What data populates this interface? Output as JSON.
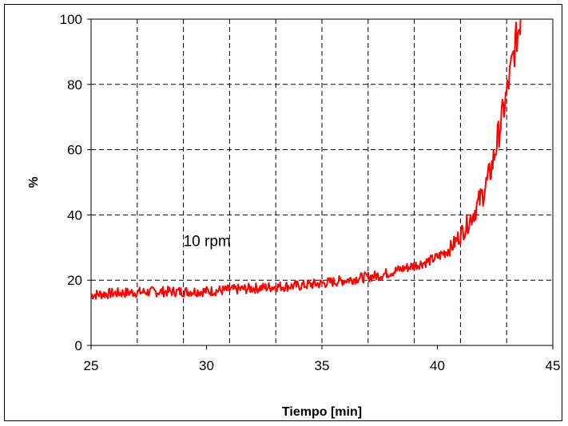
{
  "chart_data": {
    "type": "line",
    "title": "",
    "xlabel": "Tiempo [min]",
    "ylabel": "%",
    "xlim": [
      25,
      45
    ],
    "ylim": [
      0,
      100
    ],
    "x_ticks": [
      "25",
      "30",
      "35",
      "40",
      "45"
    ],
    "y_ticks": [
      "0",
      "20",
      "40",
      "60",
      "80",
      "100"
    ],
    "grid": "dashed, x every 2 min, y every 20",
    "line_color": "#ff0000",
    "annotations": [
      {
        "text": "10 rpm"
      }
    ],
    "series": [
      {
        "x": [
          25,
          26,
          27,
          28,
          29,
          30,
          31,
          32,
          33,
          34,
          35,
          35.5,
          36,
          36.5,
          37,
          37.5,
          38,
          38.5,
          39,
          39.5,
          40,
          40.3,
          40.6,
          40.8,
          41,
          41.2,
          41.4,
          41.6,
          41.8,
          42,
          42.2,
          42.4,
          42.6,
          42.8,
          43,
          43.2,
          43.4,
          43.6
        ],
        "y": [
          15.5,
          16,
          16.3,
          16.5,
          16.5,
          16.6,
          17,
          17.5,
          18,
          18.3,
          19,
          19.5,
          20,
          20.5,
          21,
          21.5,
          22.5,
          23.5,
          24.5,
          25.5,
          27,
          28.5,
          30,
          32,
          34,
          36,
          38.5,
          41,
          44,
          47,
          51,
          56,
          63,
          70,
          77,
          85,
          93,
          100
        ]
      }
    ]
  }
}
